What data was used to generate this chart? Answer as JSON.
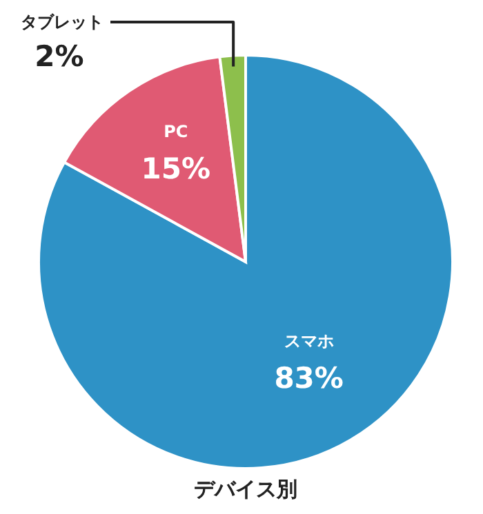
{
  "chart_data": {
    "type": "pie",
    "title": "デバイス別",
    "categories": [
      "スマホ",
      "PC",
      "タブレット"
    ],
    "values": [
      83,
      15,
      2
    ],
    "value_labels": [
      "83%",
      "15%",
      "2%"
    ],
    "colors": [
      "#2e92c6",
      "#e05a73",
      "#8dbf4c"
    ]
  }
}
